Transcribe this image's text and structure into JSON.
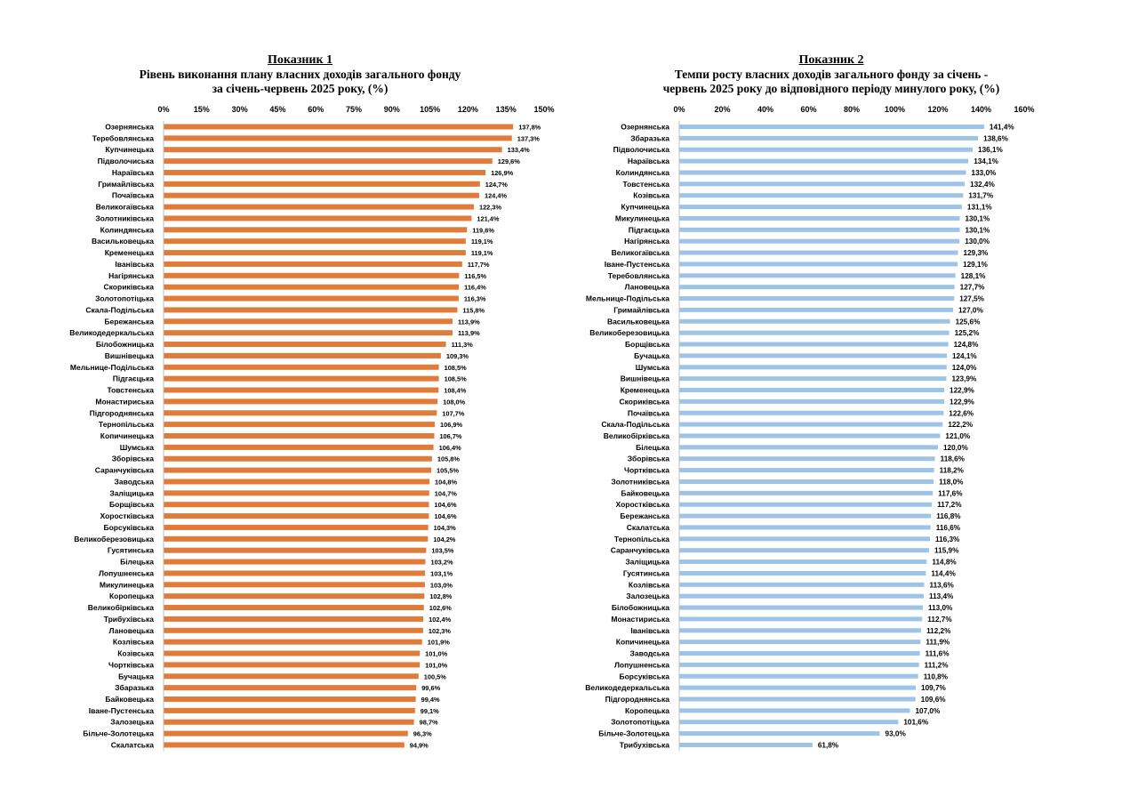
{
  "chart_data": [
    {
      "type": "bar",
      "orientation": "horizontal",
      "title_lines": [
        "Показник 1",
        "Рівень виконання плану власних доходів загального фонду",
        "за січень-червень 2025 року, (%)"
      ],
      "xlim": [
        0,
        150
      ],
      "ticks": [
        "0%",
        "15%",
        "30%",
        "45%",
        "60%",
        "75%",
        "90%",
        "105%",
        "120%",
        "135%",
        "150%"
      ],
      "tick_values": [
        0,
        15,
        30,
        45,
        60,
        75,
        90,
        105,
        120,
        135,
        150
      ],
      "color": "#E07B39",
      "grid": false,
      "categories": [
        "Озернянська",
        "Теребовлянська",
        "Купчинецька",
        "Підволочиська",
        "Нараївська",
        "Гримайлівська",
        "Почаївська",
        "Великогаївська",
        "Золотниківська",
        "Колиндянська",
        "Васильковецька",
        "Кременецька",
        "Іванівська",
        "Нагірянська",
        "Скориківська",
        "Золотопотіцька",
        "Скала-Подільська",
        "Бережанська",
        "Великодедеркальська",
        "Білобожницька",
        "Вишнівецька",
        "Мельнице-Подільська",
        "Підгаєцька",
        "Товстенська",
        "Монастириська",
        "Підгороднянська",
        "Тернопільська",
        "Копичинецька",
        "Шумська",
        "Зборівська",
        "Саранчуківська",
        "Заводська",
        "Заліщицька",
        "Борщівська",
        "Хоростківська",
        "Борсуківська",
        "Великоберезовицька",
        "Гусятинська",
        "Білецька",
        "Лопушненська",
        "Микулинецька",
        "Коропецька",
        "Великобірківська",
        "Трибухівська",
        "Лановецька",
        "Козлівська",
        "Козівська",
        "Чортківська",
        "Бучацька",
        "Збаразька",
        "Байковецька",
        "Іване-Пустенська",
        "Залозецька",
        "Більче-Золотецька",
        "Скалатська"
      ],
      "values": [
        137.8,
        137.3,
        133.4,
        129.6,
        126.9,
        124.7,
        124.4,
        122.3,
        121.4,
        119.6,
        119.1,
        119.1,
        117.7,
        116.5,
        116.4,
        116.3,
        115.8,
        113.9,
        113.9,
        111.3,
        109.3,
        108.5,
        108.5,
        108.4,
        108.0,
        107.7,
        106.9,
        106.7,
        106.4,
        105.8,
        105.5,
        104.8,
        104.7,
        104.6,
        104.6,
        104.3,
        104.2,
        103.5,
        103.2,
        103.1,
        103.0,
        102.8,
        102.6,
        102.4,
        102.3,
        101.9,
        101.0,
        101.0,
        100.5,
        99.6,
        99.4,
        99.1,
        98.7,
        96.3,
        94.9
      ],
      "labels": [
        "137,8%",
        "137,3%",
        "133,4%",
        "129,6%",
        "126,9%",
        "124,7%",
        "124,4%",
        "122,3%",
        "121,4%",
        "119,6%",
        "119,1%",
        "119,1%",
        "117,7%",
        "116,5%",
        "116,4%",
        "116,3%",
        "115,8%",
        "113,9%",
        "113,9%",
        "111,3%",
        "109,3%",
        "108,5%",
        "108,5%",
        "108,4%",
        "108,0%",
        "107,7%",
        "106,9%",
        "106,7%",
        "106,4%",
        "105,8%",
        "105,5%",
        "104,8%",
        "104,7%",
        "104,6%",
        "104,6%",
        "104,3%",
        "104,2%",
        "103,5%",
        "103,2%",
        "103,1%",
        "103,0%",
        "102,8%",
        "102,6%",
        "102,4%",
        "102,3%",
        "101,9%",
        "101,0%",
        "101,0%",
        "100,5%",
        "99,6%",
        "99,4%",
        "99,1%",
        "98,7%",
        "96,3%",
        "94,9%"
      ]
    },
    {
      "type": "bar",
      "orientation": "horizontal",
      "title_lines": [
        "Показник 2",
        "Темпи росту власних доходів загального фонду за січень -",
        "червень 2025 року до відповідного періоду минулого року, (%)"
      ],
      "xlim": [
        0,
        160
      ],
      "ticks": [
        "0%",
        "20%",
        "40%",
        "60%",
        "80%",
        "100%",
        "120%",
        "140%",
        "160%"
      ],
      "tick_values": [
        0,
        20,
        40,
        60,
        80,
        100,
        120,
        140,
        160
      ],
      "color": "#9DC3E6",
      "grid": false,
      "categories": [
        "Озернянська",
        "Збаразька",
        "Підволочиська",
        "Нараївська",
        "Колиндянська",
        "Товстенська",
        "Козівська",
        "Купчинецька",
        "Микулинецька",
        "Підгаєцька",
        "Нагірянська",
        "Великогаївська",
        "Іване-Пустенська",
        "Теребовлянська",
        "Лановецька",
        "Мельнице-Подільська",
        "Гримайлівська",
        "Васильковецька",
        "Великоберезовицька",
        "Борщівська",
        "Бучацька",
        "Шумська",
        "Вишнівецька",
        "Кременецька",
        "Скориківська",
        "Почаївська",
        "Скала-Подільська",
        "Великобірківська",
        "Білецька",
        "Зборівська",
        "Чортківська",
        "Золотниківська",
        "Байковецька",
        "Хоростківська",
        "Бережанська",
        "Скалатська",
        "Тернопільська",
        "Саранчуківська",
        "Заліщицька",
        "Гусятинська",
        "Козлівська",
        "Залозецька",
        "Білобожницька",
        "Монастириська",
        "Іванівська",
        "Копичинецька",
        "Заводська",
        "Лопушненська",
        "Борсуківська",
        "Великодедеркальська",
        "Підгороднянська",
        "Коропецька",
        "Золотопотіцька",
        "Більче-Золотецька",
        "Трибухівська"
      ],
      "values": [
        141.4,
        138.6,
        136.1,
        134.1,
        133.0,
        132.4,
        131.7,
        131.1,
        130.1,
        130.1,
        130.0,
        129.3,
        129.1,
        128.1,
        127.7,
        127.5,
        127.0,
        125.6,
        125.2,
        124.8,
        124.1,
        124.0,
        123.9,
        122.9,
        122.9,
        122.6,
        122.2,
        121.0,
        120.0,
        118.6,
        118.2,
        118.0,
        117.6,
        117.2,
        116.8,
        116.6,
        116.3,
        115.9,
        114.8,
        114.4,
        113.6,
        113.4,
        113.0,
        112.7,
        112.2,
        111.9,
        111.6,
        111.2,
        110.8,
        109.7,
        109.6,
        107.0,
        101.6,
        93.0,
        61.8
      ],
      "labels": [
        "141,4%",
        "138,6%",
        "136,1%",
        "134,1%",
        "133,0%",
        "132,4%",
        "131,7%",
        "131,1%",
        "130,1%",
        "130,1%",
        "130,0%",
        "129,3%",
        "129,1%",
        "128,1%",
        "127,7%",
        "127,5%",
        "127,0%",
        "125,6%",
        "125,2%",
        "124,8%",
        "124,1%",
        "124,0%",
        "123,9%",
        "122,9%",
        "122,9%",
        "122,6%",
        "122,2%",
        "121,0%",
        "120,0%",
        "118,6%",
        "118,2%",
        "118,0%",
        "117,6%",
        "117,2%",
        "116,8%",
        "116,6%",
        "116,3%",
        "115,9%",
        "114,8%",
        "114,4%",
        "113,6%",
        "113,4%",
        "113,0%",
        "112,7%",
        "112,2%",
        "111,9%",
        "111,6%",
        "111,2%",
        "110,8%",
        "109,7%",
        "109,6%",
        "107,0%",
        "101,6%",
        "93,0%",
        "61,8%"
      ]
    }
  ]
}
